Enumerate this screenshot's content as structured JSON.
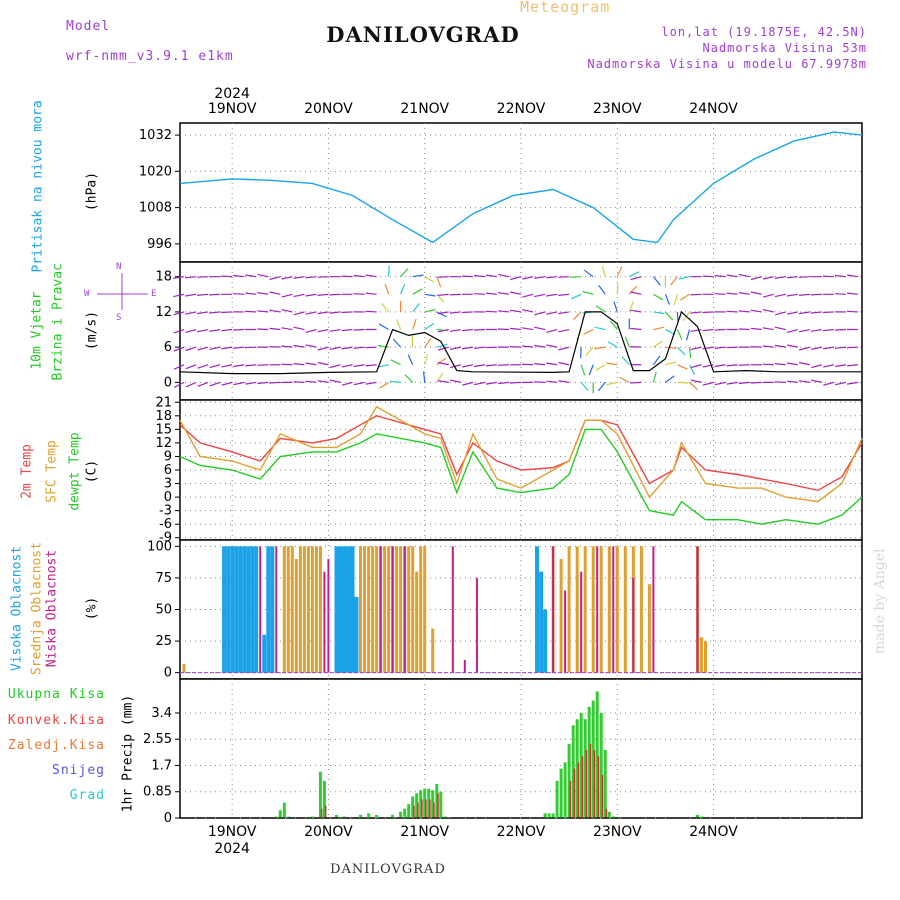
{
  "header": {
    "title": "DANILOVGRAD",
    "meteogram": "Meteogram",
    "model_label": "Model",
    "model_name": "wrf-nmm_v3.9.1 e1km",
    "coords": "lon,lat (19.1875E, 42.5N)",
    "elevation": "Nadmorska Visina 53m",
    "model_elevation": "Nadmorska Visina u modelu 67.9978m",
    "footer": "DANILOVGRAD",
    "credit": "made by Angel"
  },
  "colors": {
    "pressure": "#1aa3e8",
    "temp2m": "#ee4444",
    "sfc": "#e0a030",
    "dewpt": "#22cc22",
    "wind": "#a020c0",
    "high": "#1aa3e8",
    "mid": "#e0a030",
    "low": "#c0208a",
    "precip": "#33cc33",
    "convective": "#cc3333"
  },
  "panel_labels": {
    "pressure": [
      "Pritisak na nivou mora",
      "(hPa)"
    ],
    "wind": [
      "10m Vjetar",
      "Brzina i Pravac",
      "(m/s)"
    ],
    "compass": {
      "n": "N",
      "s": "S",
      "e": "E",
      "w": "W"
    },
    "temp": [
      "2m Temp",
      "SFC Temp",
      "dewpt Temp",
      "(C)"
    ],
    "cloud": [
      "Visoka Oblacnost",
      "Srednja Oblacnost",
      "Niska Oblacnost",
      "(%)"
    ],
    "precip_unit": "1hr Precip (mm)"
  },
  "precip_legend": [
    {
      "label": "Ukupna Kisa",
      "color": "#22cc22"
    },
    {
      "label": "Konvek.Kisa",
      "color": "#ee4444"
    },
    {
      "label": "Zaledj.Kisa",
      "color": "#ee7733"
    },
    {
      "label": "Snijeg",
      "color": "#5555dd"
    },
    {
      "label": "Grad",
      "color": "#22cccc"
    }
  ],
  "chart_data": {
    "type": "line",
    "x_days": [
      "19NOV",
      "20NOV",
      "21NOV",
      "22NOV",
      "23NOV",
      "24NOV"
    ],
    "year": "2024",
    "x_range_hours": [
      -13,
      157
    ],
    "panels": [
      {
        "name": "pressure",
        "ylim": [
          990,
          1036
        ],
        "yticks": [
          "996",
          "1008",
          "1020",
          "1032"
        ],
        "series": [
          {
            "name": "Pritisak na nivou mora",
            "x": [
              -13,
              0,
              10,
              20,
              30,
              40,
              50,
              60,
              70,
              80,
              90,
              100,
              106,
              110,
              120,
              130,
              140,
              150,
              157
            ],
            "y": [
              1016,
              1017.5,
              1017,
              1016,
              1012,
              1004,
              996.5,
              1006,
              1012,
              1014,
              1008,
              997.5,
              996.5,
              1004,
              1016,
              1024,
              1030,
              1033,
              1032
            ]
          }
        ]
      },
      {
        "name": "wind",
        "ylim": [
          -3,
          20.5
        ],
        "yticks": [
          "0",
          "6",
          "12",
          "18"
        ],
        "series": [
          {
            "name": "Brzina",
            "x": [
              -13,
              0,
              12,
              24,
              36,
              40,
              44,
              48,
              52,
              56,
              60,
              80,
              84,
              88,
              92,
              96,
              100,
              104,
              108,
              112,
              116,
              120,
              128,
              136,
              157
            ],
            "y": [
              1.8,
              1.5,
              1.5,
              1.7,
              1.8,
              9,
              8,
              8.5,
              7,
              2,
              1.8,
              1.7,
              1.8,
              12,
              12,
              10,
              2,
              2,
              4,
              12,
              9.5,
              1.8,
              2,
              1.8,
              1.8
            ]
          }
        ]
      },
      {
        "name": "temp",
        "ylim": [
          -9.5,
          21.5
        ],
        "yticks": [
          "-9",
          "-6",
          "-3",
          "0",
          "3",
          "6",
          "9",
          "12",
          "15",
          "18",
          "21"
        ],
        "series": [
          {
            "name": "2m Temp",
            "x": [
              -13,
              -8,
              0,
              7,
              12,
              20,
              26,
              32,
              36,
              48,
              52,
              56,
              60,
              66,
              72,
              80,
              84,
              88,
              92,
              96,
              104,
              110,
              112,
              118,
              126,
              132,
              138,
              146,
              152,
              157
            ],
            "y": [
              16,
              12,
              10,
              8,
              13,
              12,
              13,
              16,
              18,
              15,
              14,
              5,
              12,
              8,
              6,
              6.5,
              8,
              17,
              17,
              16,
              3,
              6,
              11,
              6,
              5,
              4,
              3,
              1.5,
              4.5,
              12
            ]
          },
          {
            "name": "SFC Temp",
            "x": [
              -13,
              -8,
              0,
              7,
              12,
              20,
              26,
              32,
              36,
              48,
              52,
              56,
              60,
              66,
              72,
              80,
              84,
              88,
              92,
              96,
              104,
              110,
              112,
              118,
              126,
              132,
              138,
              146,
              152,
              157
            ],
            "y": [
              17,
              9,
              8,
              6,
              14,
              11,
              11,
              14,
              20,
              14,
              13,
              3,
              14,
              4,
              2,
              6,
              8,
              17,
              17,
              14,
              0,
              6,
              12,
              3,
              2,
              2,
              0,
              -1,
              3,
              13
            ]
          },
          {
            "name": "dewpt Temp",
            "x": [
              -13,
              -8,
              0,
              7,
              12,
              20,
              26,
              32,
              36,
              48,
              52,
              56,
              60,
              66,
              72,
              80,
              84,
              88,
              92,
              96,
              104,
              110,
              112,
              118,
              126,
              132,
              138,
              146,
              152,
              157
            ],
            "y": [
              9,
              7,
              6,
              4,
              9,
              10,
              10,
              12,
              14,
              12,
              11,
              1,
              10,
              2,
              1,
              2,
              5,
              15,
              15,
              10,
              -3,
              -4,
              -1,
              -5,
              -5,
              -6,
              -5,
              -6,
              -4,
              0
            ]
          }
        ]
      },
      {
        "name": "cloud",
        "ylim": [
          -5,
          105
        ],
        "yticks": [
          "0",
          "25",
          "50",
          "75",
          "100"
        ],
        "series": [
          {
            "name": "Visoka Oblacnost",
            "x": [
              -2,
              -1,
              0,
              1,
              2,
              3,
              4,
              5,
              6,
              8,
              9,
              10,
              26,
              27,
              28,
              29,
              30,
              31,
              76,
              77,
              78
            ],
            "y": [
              100,
              100,
              100,
              100,
              100,
              100,
              100,
              100,
              100,
              30,
              100,
              100,
              100,
              100,
              100,
              100,
              100,
              60,
              100,
              80,
              50
            ]
          },
          {
            "name": "Srednja Oblacnost",
            "x": [
              -12,
              13,
              14,
              15,
              16,
              17,
              18,
              19,
              20,
              21,
              22,
              32,
              33,
              34,
              35,
              36,
              37,
              38,
              39,
              40,
              41,
              42,
              43,
              44,
              45,
              46,
              47,
              48,
              50,
              80,
              82,
              84,
              86,
              88,
              90,
              92,
              94,
              96,
              98,
              100,
              102,
              104,
              116,
              117,
              118
            ],
            "y": [
              7,
              100,
              100,
              100,
              90,
              100,
              100,
              100,
              100,
              100,
              100,
              100,
              100,
              100,
              100,
              100,
              100,
              100,
              100,
              100,
              100,
              100,
              100,
              100,
              100,
              80,
              100,
              100,
              35,
              100,
              90,
              100,
              100,
              100,
              100,
              100,
              100,
              100,
              100,
              100,
              100,
              70,
              100,
              28,
              25
            ]
          },
          {
            "name": "Niska Oblacnost",
            "x": [
              7,
              11,
              23,
              24,
              37,
              40,
              43,
              55,
              58,
              61,
              80,
              83,
              87,
              91,
              95,
              100,
              105,
              116
            ],
            "y": [
              100,
              100,
              80,
              90,
              100,
              100,
              100,
              100,
              10,
              75,
              100,
              65,
              80,
              100,
              100,
              75,
              100,
              100
            ]
          }
        ]
      },
      {
        "name": "precip",
        "ylim": [
          0,
          4.5
        ],
        "yticks": [
          "0",
          "0.85",
          "1.7",
          "2.55",
          "3.4"
        ],
        "series": [
          {
            "name": "Ukupna Kisa",
            "x": [
              11,
              12,
              13,
              14,
              20,
              22,
              23,
              26,
              28,
              32,
              34,
              36,
              40,
              42,
              43,
              44,
              45,
              46,
              47,
              48,
              49,
              50,
              51,
              52,
              53,
              54,
              55,
              78,
              79,
              80,
              81,
              82,
              83,
              84,
              85,
              86,
              87,
              88,
              89,
              90,
              91,
              92,
              93,
              94,
              95,
              96,
              116,
              117
            ],
            "y": [
              0.05,
              0.25,
              0.5,
              0.05,
              0.05,
              1.5,
              1.2,
              0.1,
              0.05,
              0.1,
              0.15,
              0.1,
              0.1,
              0.2,
              0.3,
              0.45,
              0.7,
              0.8,
              0.9,
              0.95,
              0.95,
              0.9,
              1.1,
              0.85,
              0.05,
              0.02,
              0.02,
              0.15,
              0.15,
              0.15,
              1.2,
              1.6,
              1.8,
              2.4,
              3,
              3.2,
              3.4,
              3.2,
              3.6,
              3.8,
              4.1,
              3.4,
              2.2,
              0.2,
              0.05,
              0.02,
              0.1,
              0.05
            ]
          },
          {
            "name": "Konvek.Kisa",
            "x": [
              22,
              23,
              45,
              46,
              47,
              48,
              49,
              50,
              51,
              84,
              85,
              86,
              87,
              88,
              89,
              90,
              91,
              92,
              93
            ],
            "y": [
              0.3,
              0.4,
              0.4,
              0.5,
              0.6,
              0.6,
              0.6,
              0.5,
              0.8,
              1.2,
              1.6,
              1.8,
              2.0,
              2.2,
              2.4,
              2.2,
              2.0,
              1.4,
              0.3
            ]
          }
        ]
      }
    ]
  }
}
